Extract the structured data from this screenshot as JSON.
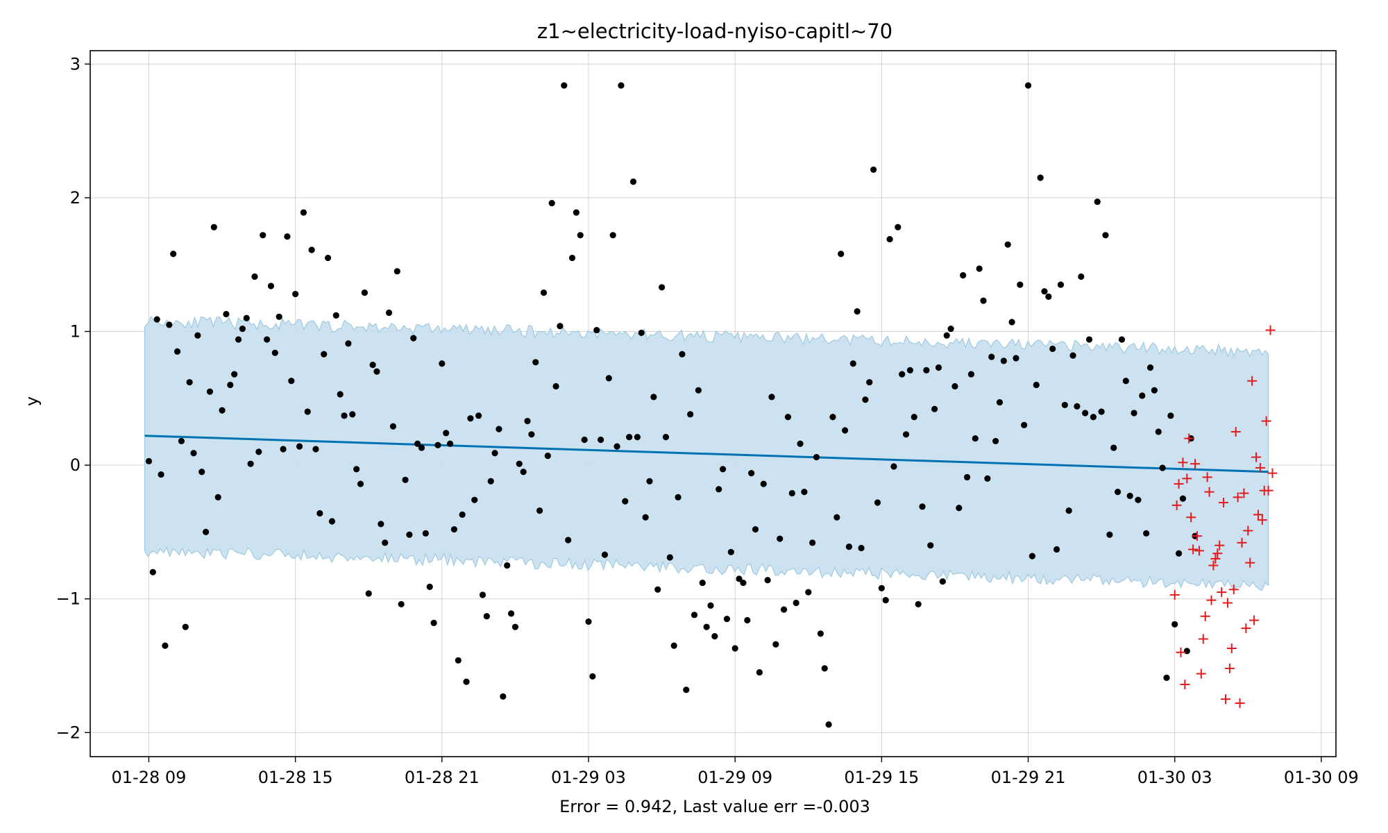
{
  "chart_data": {
    "type": "scatter",
    "title": "z1~electricity-load-nyiso-capitl~70",
    "xlabel": "Error = 0.942, Last value err =-0.003",
    "ylabel": "y",
    "x_ticks": [
      "01-28 09",
      "01-28 15",
      "01-28 21",
      "01-29 03",
      "01-29 09",
      "01-29 15",
      "01-29 21",
      "01-30 03",
      "01-30 09"
    ],
    "y_ticks": [
      "−2",
      "−1",
      "0",
      "1",
      "2",
      "3"
    ],
    "xlim_hours_from_0128_0000": [
      6.6,
      57.6
    ],
    "ylim": [
      -2.18,
      3.1
    ],
    "grid": true,
    "colors": {
      "observed": "#000000",
      "forecast_points": "#e41a1c",
      "trend_line": "#0072b2",
      "band_fill": "#c6dfee",
      "band_edge": "#9ecae1"
    },
    "trend": {
      "start": [
        "01-28 08:50",
        0.22
      ],
      "end": [
        "01-30 06:50",
        -0.05
      ]
    },
    "band": {
      "upper_start": 1.08,
      "upper_end": 0.85,
      "lower_start": -0.64,
      "lower_end": -0.9
    },
    "observed_points": [
      [
        "01-28 09:00",
        0.03
      ],
      [
        "01-28 09:10",
        -0.8
      ],
      [
        "01-28 09:20",
        1.09
      ],
      [
        "01-28 09:30",
        -0.07
      ],
      [
        "01-28 09:40",
        -1.35
      ],
      [
        "01-28 09:50",
        1.05
      ],
      [
        "01-28 10:00",
        1.58
      ],
      [
        "01-28 10:10",
        0.85
      ],
      [
        "01-28 10:20",
        0.18
      ],
      [
        "01-28 10:30",
        -1.21
      ],
      [
        "01-28 10:40",
        0.62
      ],
      [
        "01-28 10:50",
        0.09
      ],
      [
        "01-28 11:00",
        0.97
      ],
      [
        "01-28 11:10",
        -0.05
      ],
      [
        "01-28 11:20",
        -0.5
      ],
      [
        "01-28 11:30",
        0.55
      ],
      [
        "01-28 11:40",
        1.78
      ],
      [
        "01-28 11:50",
        -0.24
      ],
      [
        "01-28 12:00",
        0.41
      ],
      [
        "01-28 12:10",
        1.13
      ],
      [
        "01-28 12:20",
        0.6
      ],
      [
        "01-28 12:30",
        0.68
      ],
      [
        "01-28 12:40",
        0.94
      ],
      [
        "01-28 12:50",
        1.02
      ],
      [
        "01-28 13:00",
        1.1
      ],
      [
        "01-28 13:10",
        0.01
      ],
      [
        "01-28 13:20",
        1.41
      ],
      [
        "01-28 13:30",
        0.1
      ],
      [
        "01-28 13:40",
        1.72
      ],
      [
        "01-28 13:50",
        0.94
      ],
      [
        "01-28 14:00",
        1.34
      ],
      [
        "01-28 14:10",
        0.84
      ],
      [
        "01-28 14:20",
        1.11
      ],
      [
        "01-28 14:30",
        0.12
      ],
      [
        "01-28 14:40",
        1.71
      ],
      [
        "01-28 14:50",
        0.63
      ],
      [
        "01-28 15:00",
        1.28
      ],
      [
        "01-28 15:10",
        0.14
      ],
      [
        "01-28 15:20",
        1.89
      ],
      [
        "01-28 15:30",
        0.4
      ],
      [
        "01-28 15:40",
        1.61
      ],
      [
        "01-28 15:50",
        0.12
      ],
      [
        "01-28 16:00",
        -0.36
      ],
      [
        "01-28 16:10",
        0.83
      ],
      [
        "01-28 16:20",
        1.55
      ],
      [
        "01-28 16:30",
        -0.42
      ],
      [
        "01-28 16:40",
        1.12
      ],
      [
        "01-28 16:50",
        0.53
      ],
      [
        "01-28 17:00",
        0.37
      ],
      [
        "01-28 17:10",
        0.91
      ],
      [
        "01-28 17:20",
        0.38
      ],
      [
        "01-28 17:30",
        -0.03
      ],
      [
        "01-28 17:40",
        -0.14
      ],
      [
        "01-28 17:50",
        1.29
      ],
      [
        "01-28 18:00",
        -0.96
      ],
      [
        "01-28 18:10",
        0.75
      ],
      [
        "01-28 18:20",
        0.7
      ],
      [
        "01-28 18:30",
        -0.44
      ],
      [
        "01-28 18:40",
        -0.58
      ],
      [
        "01-28 18:50",
        1.14
      ],
      [
        "01-28 19:00",
        0.29
      ],
      [
        "01-28 19:10",
        1.45
      ],
      [
        "01-28 19:20",
        -1.04
      ],
      [
        "01-28 19:30",
        -0.11
      ],
      [
        "01-28 19:40",
        -0.52
      ],
      [
        "01-28 19:50",
        0.95
      ],
      [
        "01-28 20:00",
        0.16
      ],
      [
        "01-28 20:10",
        0.13
      ],
      [
        "01-28 20:20",
        -0.51
      ],
      [
        "01-28 20:30",
        -0.91
      ],
      [
        "01-28 20:40",
        -1.18
      ],
      [
        "01-28 20:50",
        0.15
      ],
      [
        "01-28 21:00",
        0.76
      ],
      [
        "01-28 21:10",
        0.24
      ],
      [
        "01-28 21:20",
        0.16
      ],
      [
        "01-28 21:30",
        -0.48
      ],
      [
        "01-28 21:40",
        -1.46
      ],
      [
        "01-28 21:50",
        -0.37
      ],
      [
        "01-28 22:00",
        -1.62
      ],
      [
        "01-28 22:10",
        0.35
      ],
      [
        "01-28 22:20",
        -0.26
      ],
      [
        "01-28 22:30",
        0.37
      ],
      [
        "01-28 22:40",
        -0.97
      ],
      [
        "01-28 22:50",
        -1.13
      ],
      [
        "01-28 23:00",
        -0.12
      ],
      [
        "01-28 23:10",
        0.09
      ],
      [
        "01-28 23:20",
        0.27
      ],
      [
        "01-28 23:30",
        -1.73
      ],
      [
        "01-28 23:40",
        -0.75
      ],
      [
        "01-28 23:50",
        -1.11
      ],
      [
        "01-29 00:00",
        -1.21
      ],
      [
        "01-29 00:10",
        0.01
      ],
      [
        "01-29 00:20",
        -0.05
      ],
      [
        "01-29 00:30",
        0.33
      ],
      [
        "01-29 00:40",
        0.23
      ],
      [
        "01-29 00:50",
        0.77
      ],
      [
        "01-29 01:00",
        -0.34
      ],
      [
        "01-29 01:10",
        1.29
      ],
      [
        "01-29 01:20",
        0.07
      ],
      [
        "01-29 01:30",
        1.96
      ],
      [
        "01-29 01:40",
        0.59
      ],
      [
        "01-29 01:50",
        1.04
      ],
      [
        "01-29 02:00",
        2.84
      ],
      [
        "01-29 02:10",
        -0.56
      ],
      [
        "01-29 02:20",
        1.55
      ],
      [
        "01-29 02:30",
        1.89
      ],
      [
        "01-29 02:40",
        1.72
      ],
      [
        "01-29 02:50",
        0.19
      ],
      [
        "01-29 03:00",
        -1.17
      ],
      [
        "01-29 03:10",
        -1.58
      ],
      [
        "01-29 03:20",
        1.01
      ],
      [
        "01-29 03:30",
        0.19
      ],
      [
        "01-29 03:40",
        -0.67
      ],
      [
        "01-29 03:50",
        0.65
      ],
      [
        "01-29 04:00",
        1.72
      ],
      [
        "01-29 04:10",
        0.14
      ],
      [
        "01-29 04:20",
        2.84
      ],
      [
        "01-29 04:30",
        -0.27
      ],
      [
        "01-29 04:40",
        0.21
      ],
      [
        "01-29 04:50",
        2.12
      ],
      [
        "01-29 05:00",
        0.21
      ],
      [
        "01-29 05:10",
        0.99
      ],
      [
        "01-29 05:20",
        -0.39
      ],
      [
        "01-29 05:30",
        -0.12
      ],
      [
        "01-29 05:40",
        0.51
      ],
      [
        "01-29 05:50",
        -0.93
      ],
      [
        "01-29 06:00",
        1.33
      ],
      [
        "01-29 06:10",
        0.21
      ],
      [
        "01-29 06:20",
        -0.69
      ],
      [
        "01-29 06:30",
        -1.35
      ],
      [
        "01-29 06:40",
        -0.24
      ],
      [
        "01-29 06:50",
        0.83
      ],
      [
        "01-29 07:00",
        -1.68
      ],
      [
        "01-29 07:10",
        0.38
      ],
      [
        "01-29 07:20",
        -1.12
      ],
      [
        "01-29 07:30",
        0.56
      ],
      [
        "01-29 07:40",
        -0.88
      ],
      [
        "01-29 07:50",
        -1.21
      ],
      [
        "01-29 08:00",
        -1.05
      ],
      [
        "01-29 08:10",
        -1.28
      ],
      [
        "01-29 08:20",
        -0.18
      ],
      [
        "01-29 08:30",
        -0.03
      ],
      [
        "01-29 08:40",
        -1.15
      ],
      [
        "01-29 08:50",
        -0.65
      ],
      [
        "01-29 09:00",
        -1.37
      ],
      [
        "01-29 09:10",
        -0.85
      ],
      [
        "01-29 09:20",
        -0.88
      ],
      [
        "01-29 09:30",
        -1.16
      ],
      [
        "01-29 09:40",
        -0.06
      ],
      [
        "01-29 09:50",
        -0.48
      ],
      [
        "01-29 10:00",
        -1.55
      ],
      [
        "01-29 10:10",
        -0.14
      ],
      [
        "01-29 10:20",
        -0.86
      ],
      [
        "01-29 10:30",
        0.51
      ],
      [
        "01-29 10:40",
        -1.34
      ],
      [
        "01-29 10:50",
        -0.55
      ],
      [
        "01-29 11:00",
        -1.08
      ],
      [
        "01-29 11:10",
        0.36
      ],
      [
        "01-29 11:20",
        -0.21
      ],
      [
        "01-29 11:30",
        -1.03
      ],
      [
        "01-29 11:40",
        0.16
      ],
      [
        "01-29 11:50",
        -0.2
      ],
      [
        "01-29 12:00",
        -0.95
      ],
      [
        "01-29 12:10",
        -0.58
      ],
      [
        "01-29 12:20",
        0.06
      ],
      [
        "01-29 12:30",
        -1.26
      ],
      [
        "01-29 12:40",
        -1.52
      ],
      [
        "01-29 12:50",
        -1.94
      ],
      [
        "01-29 13:00",
        0.36
      ],
      [
        "01-29 13:10",
        -0.39
      ],
      [
        "01-29 13:20",
        1.58
      ],
      [
        "01-29 13:30",
        0.26
      ],
      [
        "01-29 13:40",
        -0.61
      ],
      [
        "01-29 13:50",
        0.76
      ],
      [
        "01-29 14:00",
        1.15
      ],
      [
        "01-29 14:10",
        -0.62
      ],
      [
        "01-29 14:20",
        0.49
      ],
      [
        "01-29 14:30",
        0.62
      ],
      [
        "01-29 14:40",
        2.21
      ],
      [
        "01-29 14:50",
        -0.28
      ],
      [
        "01-29 15:00",
        -0.92
      ],
      [
        "01-29 15:10",
        -1.01
      ],
      [
        "01-29 15:20",
        1.69
      ],
      [
        "01-29 15:30",
        -0.01
      ],
      [
        "01-29 15:40",
        1.78
      ],
      [
        "01-29 15:50",
        0.68
      ],
      [
        "01-29 16:00",
        0.23
      ],
      [
        "01-29 16:10",
        0.71
      ],
      [
        "01-29 16:20",
        0.36
      ],
      [
        "01-29 16:30",
        -1.04
      ],
      [
        "01-29 16:40",
        -0.31
      ],
      [
        "01-29 16:50",
        0.71
      ],
      [
        "01-29 17:00",
        -0.6
      ],
      [
        "01-29 17:10",
        0.42
      ],
      [
        "01-29 17:20",
        0.73
      ],
      [
        "01-29 17:30",
        -0.87
      ],
      [
        "01-29 17:40",
        0.97
      ],
      [
        "01-29 17:50",
        1.02
      ],
      [
        "01-29 18:00",
        0.59
      ],
      [
        "01-29 18:10",
        -0.32
      ],
      [
        "01-29 18:20",
        1.42
      ],
      [
        "01-29 18:30",
        -0.09
      ],
      [
        "01-29 18:40",
        0.68
      ],
      [
        "01-29 18:50",
        0.2
      ],
      [
        "01-29 19:00",
        1.47
      ],
      [
        "01-29 19:10",
        1.23
      ],
      [
        "01-29 19:20",
        -0.1
      ],
      [
        "01-29 19:30",
        0.81
      ],
      [
        "01-29 19:40",
        0.18
      ],
      [
        "01-29 19:50",
        0.47
      ],
      [
        "01-29 20:00",
        0.78
      ],
      [
        "01-29 20:10",
        1.65
      ],
      [
        "01-29 20:20",
        1.07
      ],
      [
        "01-29 20:30",
        0.8
      ],
      [
        "01-29 20:40",
        1.35
      ],
      [
        "01-29 20:50",
        0.3
      ],
      [
        "01-29 21:00",
        2.84
      ],
      [
        "01-29 21:10",
        -0.68
      ],
      [
        "01-29 21:20",
        0.6
      ],
      [
        "01-29 21:30",
        2.15
      ],
      [
        "01-29 21:40",
        1.3
      ],
      [
        "01-29 21:50",
        1.26
      ],
      [
        "01-29 22:00",
        0.87
      ],
      [
        "01-29 22:10",
        -0.63
      ],
      [
        "01-29 22:20",
        1.35
      ],
      [
        "01-29 22:30",
        0.45
      ],
      [
        "01-29 22:40",
        -0.34
      ],
      [
        "01-29 22:50",
        0.82
      ],
      [
        "01-29 23:00",
        0.44
      ],
      [
        "01-29 23:10",
        1.41
      ],
      [
        "01-29 23:20",
        0.39
      ],
      [
        "01-29 23:30",
        0.94
      ],
      [
        "01-29 23:40",
        0.36
      ],
      [
        "01-29 23:50",
        1.97
      ],
      [
        "01-30 00:00",
        0.4
      ],
      [
        "01-30 00:10",
        1.72
      ],
      [
        "01-30 00:20",
        -0.52
      ],
      [
        "01-30 00:30",
        0.13
      ],
      [
        "01-30 00:40",
        -0.2
      ],
      [
        "01-30 00:50",
        0.94
      ],
      [
        "01-30 01:00",
        0.63
      ],
      [
        "01-30 01:10",
        -0.23
      ],
      [
        "01-30 01:20",
        0.39
      ],
      [
        "01-30 01:30",
        -0.26
      ],
      [
        "01-30 01:40",
        0.52
      ],
      [
        "01-30 01:50",
        -0.51
      ],
      [
        "01-30 02:00",
        0.73
      ],
      [
        "01-30 02:10",
        0.56
      ],
      [
        "01-30 02:20",
        0.25
      ],
      [
        "01-30 02:30",
        -0.02
      ],
      [
        "01-30 02:40",
        -1.59
      ],
      [
        "01-30 02:50",
        0.37
      ],
      [
        "01-30 03:00",
        -1.19
      ],
      [
        "01-30 03:10",
        -0.66
      ],
      [
        "01-30 03:20",
        -0.25
      ],
      [
        "01-30 03:30",
        -1.39
      ],
      [
        "01-30 03:40",
        0.2
      ],
      [
        "01-30 03:50",
        -0.53
      ]
    ],
    "forecast_points": [
      [
        "01-30 03:00",
        -0.97
      ],
      [
        "01-30 03:05",
        -0.3
      ],
      [
        "01-30 03:10",
        -0.14
      ],
      [
        "01-30 03:15",
        -1.4
      ],
      [
        "01-30 03:20",
        0.02
      ],
      [
        "01-30 03:25",
        -1.64
      ],
      [
        "01-30 03:30",
        -0.1
      ],
      [
        "01-30 03:35",
        0.2
      ],
      [
        "01-30 03:40",
        -0.39
      ],
      [
        "01-30 03:45",
        -0.63
      ],
      [
        "01-30 03:50",
        0.01
      ],
      [
        "01-30 03:55",
        -0.53
      ],
      [
        "01-30 04:00",
        -0.64
      ],
      [
        "01-30 04:05",
        -1.56
      ],
      [
        "01-30 04:10",
        -1.3
      ],
      [
        "01-30 04:15",
        -1.13
      ],
      [
        "01-30 04:20",
        -0.09
      ],
      [
        "01-30 04:25",
        -0.2
      ],
      [
        "01-30 04:30",
        -1.01
      ],
      [
        "01-30 04:35",
        -0.75
      ],
      [
        "01-30 04:40",
        -0.7
      ],
      [
        "01-30 04:45",
        -0.66
      ],
      [
        "01-30 04:50",
        -0.6
      ],
      [
        "01-30 04:55",
        -0.95
      ],
      [
        "01-30 05:00",
        -0.28
      ],
      [
        "01-30 05:05",
        -1.75
      ],
      [
        "01-30 05:10",
        -1.03
      ],
      [
        "01-30 05:15",
        -1.52
      ],
      [
        "01-30 05:20",
        -1.37
      ],
      [
        "01-30 05:25",
        -0.93
      ],
      [
        "01-30 05:30",
        0.25
      ],
      [
        "01-30 05:35",
        -0.24
      ],
      [
        "01-30 05:40",
        -1.78
      ],
      [
        "01-30 05:45",
        -0.58
      ],
      [
        "01-30 05:50",
        -0.21
      ],
      [
        "01-30 05:55",
        -1.22
      ],
      [
        "01-30 06:00",
        -0.49
      ],
      [
        "01-30 06:05",
        -0.73
      ],
      [
        "01-30 06:10",
        0.63
      ],
      [
        "01-30 06:15",
        -1.16
      ],
      [
        "01-30 06:20",
        0.06
      ],
      [
        "01-30 06:25",
        -0.37
      ],
      [
        "01-30 06:30",
        -0.02
      ],
      [
        "01-30 06:35",
        -0.41
      ],
      [
        "01-30 06:40",
        -0.19
      ],
      [
        "01-30 06:45",
        0.33
      ],
      [
        "01-30 06:50",
        -0.19
      ],
      [
        "01-30 06:55",
        1.01
      ],
      [
        "01-30 07:00",
        -0.06
      ]
    ]
  }
}
